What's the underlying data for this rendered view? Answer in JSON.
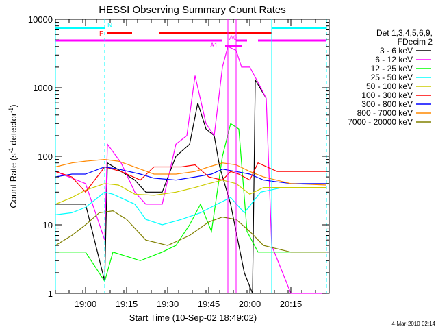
{
  "chart_data": {
    "type": "line",
    "title": "HESSI Observing Summary Count Rates",
    "xlabel": "Start Time (10-Sep-02 18:49:02)",
    "ylabel_prefix": "Count Rate (s",
    "ylabel_sup": "-1",
    "ylabel_mid": " detector",
    "ylabel_suffix": ")",
    "footer": "4-Mar-2010 02:14",
    "y_scale": "log",
    "ylim": [
      1,
      10000
    ],
    "x_unit": "minutes",
    "xlim": [
      "18:49",
      "20:29"
    ],
    "y_ticks": [
      {
        "value": 1,
        "label": "1"
      },
      {
        "value": 10,
        "label": "10"
      },
      {
        "value": 100,
        "label": "100"
      },
      {
        "value": 1000,
        "label": "1000"
      },
      {
        "value": 10000,
        "label": "10000"
      }
    ],
    "x_ticks": [
      {
        "time": "19:00",
        "label": "19:00"
      },
      {
        "time": "19:15",
        "label": "19:15"
      },
      {
        "time": "19:30",
        "label": "19:30"
      },
      {
        "time": "19:45",
        "label": "19:45"
      },
      {
        "time": "20:00",
        "label": "20:00"
      },
      {
        "time": "20:15",
        "label": "20:15"
      }
    ],
    "legend_header": [
      "Det 1,3,4,5,6,9,",
      "FDecim 2"
    ],
    "legend_position": "right",
    "series": [
      {
        "name": "3 - 6 keV",
        "color": "#000000",
        "points": [
          [
            "18:49",
            20
          ],
          [
            "19:00",
            20
          ],
          [
            "19:07",
            1.5
          ],
          [
            "19:08",
            80
          ],
          [
            "19:13",
            60
          ],
          [
            "19:18",
            45
          ],
          [
            "19:22",
            30
          ],
          [
            "19:28",
            30
          ],
          [
            "19:33",
            100
          ],
          [
            "19:38",
            150
          ],
          [
            "19:41",
            600
          ],
          [
            "19:44",
            250
          ],
          [
            "19:47",
            200
          ],
          [
            "19:49",
            70
          ],
          [
            "19:53",
            20
          ],
          [
            "19:56",
            5
          ],
          [
            "19:58",
            2
          ],
          [
            "20:01",
            1
          ],
          [
            "20:02",
            1300
          ],
          [
            "20:06",
            700
          ]
        ]
      },
      {
        "name": "6 - 12 keV",
        "color": "#ff00ff",
        "points": [
          [
            "18:49",
            60
          ],
          [
            "19:00",
            40
          ],
          [
            "19:07",
            6
          ],
          [
            "19:08",
            150
          ],
          [
            "19:13",
            80
          ],
          [
            "19:18",
            30
          ],
          [
            "19:22",
            20
          ],
          [
            "19:28",
            20
          ],
          [
            "19:33",
            150
          ],
          [
            "19:37",
            200
          ],
          [
            "19:40",
            1500
          ],
          [
            "19:44",
            300
          ],
          [
            "19:47",
            200
          ],
          [
            "19:50",
            2000
          ],
          [
            "19:52",
            4000
          ],
          [
            "19:55",
            3500
          ],
          [
            "19:57",
            2000
          ],
          [
            "20:00",
            2000
          ],
          [
            "20:03",
            1200
          ],
          [
            "20:06",
            700
          ],
          [
            "20:08",
            5
          ],
          [
            "20:15",
            1
          ],
          [
            "20:28",
            1
          ]
        ]
      },
      {
        "name": "12 - 25 keV",
        "color": "#00ff00",
        "points": [
          [
            "18:49",
            4
          ],
          [
            "19:00",
            4
          ],
          [
            "19:07",
            1.5
          ],
          [
            "19:10",
            4
          ],
          [
            "19:20",
            3
          ],
          [
            "19:28",
            4
          ],
          [
            "19:33",
            5
          ],
          [
            "19:38",
            10
          ],
          [
            "19:42",
            20
          ],
          [
            "19:46",
            8
          ],
          [
            "19:50",
            100
          ],
          [
            "19:53",
            300
          ],
          [
            "19:56",
            250
          ],
          [
            "19:59",
            8
          ],
          [
            "20:03",
            4
          ],
          [
            "20:10",
            4
          ],
          [
            "20:28",
            4
          ]
        ]
      },
      {
        "name": "25 - 50 keV",
        "color": "#00ffff",
        "points": [
          [
            "18:49",
            14
          ],
          [
            "18:55",
            15
          ],
          [
            "19:00",
            18
          ],
          [
            "19:07",
            30
          ],
          [
            "19:10",
            28
          ],
          [
            "19:18",
            20
          ],
          [
            "19:22",
            12
          ],
          [
            "19:28",
            10
          ],
          [
            "19:35",
            12
          ],
          [
            "19:42",
            15
          ],
          [
            "19:48",
            20
          ],
          [
            "19:53",
            25
          ],
          [
            "19:58",
            15
          ],
          [
            "20:04",
            30
          ],
          [
            "20:12",
            35
          ],
          [
            "20:20",
            35
          ],
          [
            "20:28",
            35
          ]
        ]
      },
      {
        "name": "50 - 100 keV",
        "color": "#cccc00",
        "points": [
          [
            "18:49",
            20
          ],
          [
            "18:55",
            25
          ],
          [
            "19:00",
            32
          ],
          [
            "19:07",
            40
          ],
          [
            "19:12",
            38
          ],
          [
            "19:18",
            28
          ],
          [
            "19:25",
            27
          ],
          [
            "19:33",
            30
          ],
          [
            "19:40",
            35
          ],
          [
            "19:45",
            40
          ],
          [
            "19:50",
            45
          ],
          [
            "19:55",
            40
          ],
          [
            "20:00",
            28
          ],
          [
            "20:05",
            35
          ],
          [
            "20:15",
            35
          ],
          [
            "20:28",
            35
          ]
        ]
      },
      {
        "name": "100 - 300 keV",
        "color": "#ff0000",
        "points": [
          [
            "18:49",
            60
          ],
          [
            "18:55",
            50
          ],
          [
            "19:00",
            30
          ],
          [
            "19:07",
            70
          ],
          [
            "19:13",
            60
          ],
          [
            "19:20",
            45
          ],
          [
            "19:25",
            70
          ],
          [
            "19:35",
            70
          ],
          [
            "19:40",
            75
          ],
          [
            "19:45",
            50
          ],
          [
            "19:50",
            45
          ],
          [
            "19:53",
            60
          ],
          [
            "19:56",
            55
          ],
          [
            "20:00",
            45
          ],
          [
            "20:03",
            80
          ],
          [
            "20:10",
            60
          ],
          [
            "20:20",
            60
          ],
          [
            "20:28",
            60
          ]
        ]
      },
      {
        "name": "300 - 800 keV",
        "color": "#0000ff",
        "points": [
          [
            "18:49",
            50
          ],
          [
            "18:55",
            55
          ],
          [
            "19:00",
            55
          ],
          [
            "19:07",
            70
          ],
          [
            "19:12",
            65
          ],
          [
            "19:20",
            55
          ],
          [
            "19:25",
            48
          ],
          [
            "19:33",
            45
          ],
          [
            "19:40",
            50
          ],
          [
            "19:46",
            55
          ],
          [
            "19:50",
            65
          ],
          [
            "19:55",
            60
          ],
          [
            "20:00",
            55
          ],
          [
            "20:05",
            45
          ],
          [
            "20:15",
            40
          ],
          [
            "20:28",
            40
          ]
        ]
      },
      {
        "name": "800 - 7000 keV",
        "color": "#ff8800",
        "points": [
          [
            "18:49",
            70
          ],
          [
            "18:55",
            80
          ],
          [
            "19:00",
            85
          ],
          [
            "19:07",
            90
          ],
          [
            "19:12",
            85
          ],
          [
            "19:20",
            65
          ],
          [
            "19:25",
            55
          ],
          [
            "19:33",
            55
          ],
          [
            "19:40",
            60
          ],
          [
            "19:45",
            70
          ],
          [
            "19:50",
            80
          ],
          [
            "19:55",
            75
          ],
          [
            "20:00",
            60
          ],
          [
            "20:05",
            50
          ],
          [
            "20:15",
            40
          ],
          [
            "20:28",
            38
          ]
        ]
      },
      {
        "name": "7000 - 20000 keV",
        "color": "#808000",
        "points": [
          [
            "18:49",
            5
          ],
          [
            "18:55",
            7
          ],
          [
            "19:00",
            10
          ],
          [
            "19:05",
            15
          ],
          [
            "19:10",
            16
          ],
          [
            "19:15",
            12
          ],
          [
            "19:22",
            6
          ],
          [
            "19:30",
            5
          ],
          [
            "19:38",
            7
          ],
          [
            "19:45",
            11
          ],
          [
            "19:50",
            13
          ],
          [
            "19:55",
            12
          ],
          [
            "20:00",
            8
          ],
          [
            "20:05",
            5
          ],
          [
            "20:15",
            4
          ],
          [
            "20:28",
            4
          ]
        ]
      }
    ],
    "annotations": {
      "N_label": "N",
      "F_label": "F",
      "A1_label": "A1",
      "A0_label": "A0",
      "cyan_bars": [
        [
          "18:49",
          "19:07"
        ],
        [
          "20:08",
          "20:28"
        ]
      ],
      "red_bars": [
        [
          "19:08",
          "19:17"
        ],
        [
          "19:27",
          "20:08"
        ]
      ],
      "magenta_bars": [
        [
          "18:49",
          "19:50"
        ],
        [
          "19:55",
          "19:59"
        ],
        [
          "20:03",
          "20:28"
        ]
      ],
      "magenta_low_bars": [
        [
          "19:51",
          "19:57"
        ]
      ],
      "cyan_vlines": [
        "18:49",
        "20:08"
      ],
      "cyan_dashed_vlines": [
        "19:07",
        "20:28"
      ],
      "magenta_vlines": [
        "19:52",
        "19:55"
      ],
      "colors": {
        "cyan": "#00ffff",
        "red": "#ff0000",
        "magenta": "#ff00ff"
      }
    }
  }
}
